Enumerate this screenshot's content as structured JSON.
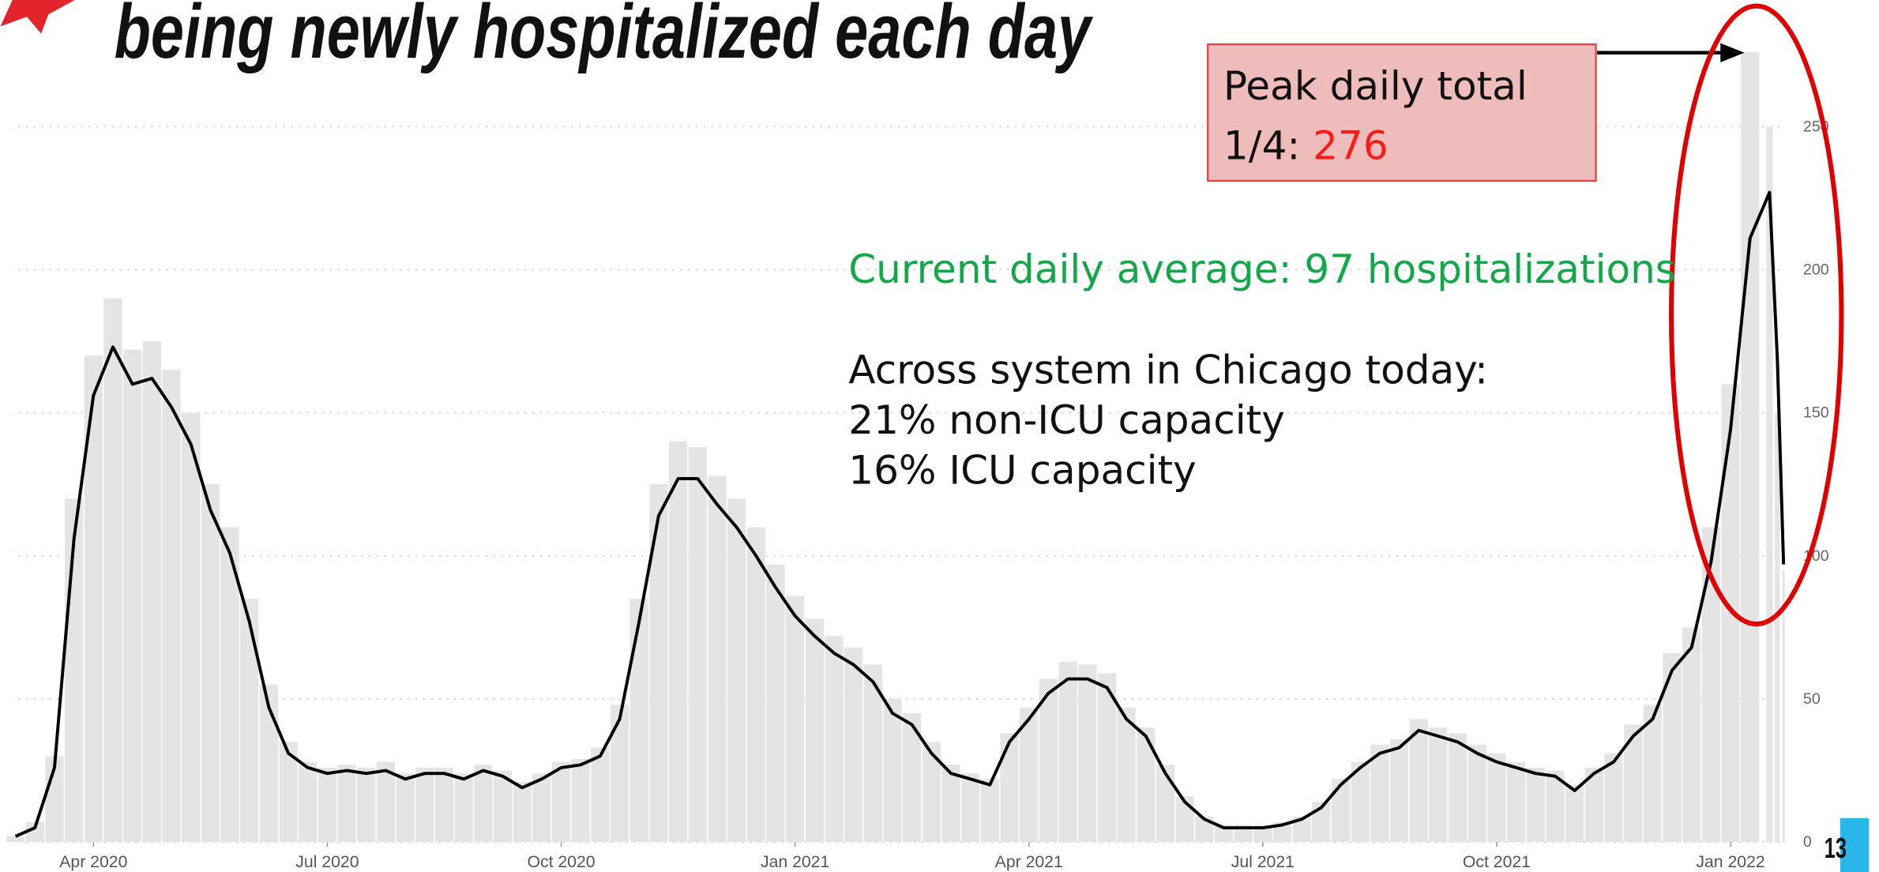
{
  "chart_data": {
    "type": "bar",
    "title": "being newly hospitalized each day",
    "x": [
      2,
      2.25,
      2.5,
      2.75,
      3,
      3.25,
      3.5,
      3.75,
      4,
      4.25,
      4.5,
      4.75,
      5,
      5.25,
      5.5,
      5.75,
      6,
      6.25,
      6.5,
      6.75,
      7,
      7.25,
      7.5,
      7.75,
      8,
      8.25,
      8.5,
      8.75,
      9,
      9.25,
      9.5,
      9.75,
      10,
      10.25,
      10.5,
      10.75,
      11,
      11.25,
      11.5,
      11.75,
      12,
      12.25,
      12.5,
      12.75,
      13,
      13.25,
      13.5,
      13.75,
      14,
      14.25,
      14.5,
      14.75,
      15,
      15.25,
      15.5,
      15.75,
      16,
      16.25,
      16.5,
      16.75,
      17,
      17.25,
      17.5,
      17.75,
      18,
      18.25,
      18.5,
      18.75,
      19,
      19.25,
      19.5,
      19.75,
      20,
      20.25,
      20.5,
      20.75,
      21,
      21.25,
      21.5,
      21.75,
      22,
      22.25,
      22.5,
      22.75,
      23,
      23.25,
      23.5,
      23.75,
      24,
      24.25,
      24.5,
      24.6,
      24.68
    ],
    "series": [
      {
        "type": "bar",
        "color": "#e4e4e4",
        "values": [
          2,
          7,
          30,
          120,
          170,
          190,
          172,
          175,
          165,
          150,
          125,
          110,
          85,
          55,
          35,
          28,
          26,
          27,
          26,
          28,
          24,
          26,
          26,
          24,
          27,
          25,
          21,
          24,
          28,
          29,
          33,
          48,
          85,
          125,
          140,
          138,
          128,
          120,
          110,
          97,
          86,
          78,
          72,
          68,
          62,
          50,
          45,
          35,
          27,
          24,
          22,
          38,
          47,
          57,
          63,
          62,
          59,
          47,
          40,
          27,
          16,
          9,
          6,
          6,
          6,
          7,
          9,
          14,
          22,
          28,
          34,
          36,
          43,
          40,
          38,
          34,
          31,
          28,
          26,
          25,
          20,
          26,
          31,
          41,
          48,
          66,
          75,
          110,
          160,
          276,
          250,
          150,
          95
        ]
      },
      {
        "type": "line",
        "color": "#000000",
        "values": [
          2,
          5,
          26,
          106,
          156,
          173,
          160,
          162,
          152,
          139,
          116,
          101,
          77,
          47,
          31,
          26,
          24,
          25,
          24,
          25,
          22,
          24,
          24,
          22,
          25,
          23,
          19,
          22,
          26,
          27,
          30,
          43,
          77,
          114,
          127,
          127,
          118,
          110,
          100,
          89,
          79,
          72,
          66,
          62,
          56,
          45,
          41,
          31,
          24,
          22,
          20,
          35,
          43,
          52,
          57,
          57,
          54,
          43,
          37,
          24,
          14,
          8,
          5,
          5,
          5,
          6,
          8,
          12,
          20,
          26,
          31,
          33,
          39,
          37,
          35,
          31,
          28,
          26,
          24,
          23,
          18,
          24,
          28,
          37,
          43,
          60,
          68,
          98,
          144,
          211,
          227,
          169,
          97
        ]
      }
    ],
    "xlim": [
      1.93,
      24.7
    ],
    "xticks": [
      {
        "value": 3,
        "label": "Apr 2020"
      },
      {
        "value": 6,
        "label": "Jul 2020"
      },
      {
        "value": 9,
        "label": "Oct 2020"
      },
      {
        "value": 12,
        "label": "Jan 2021"
      },
      {
        "value": 15,
        "label": "Apr 2021"
      },
      {
        "value": 18,
        "label": "Jul 2021"
      },
      {
        "value": 21,
        "label": "Oct 2021"
      },
      {
        "value": 24,
        "label": "Jan 2022"
      }
    ],
    "ylim": [
      0,
      280
    ],
    "yticks": [
      0,
      50,
      100,
      150,
      200,
      250
    ],
    "grid": true,
    "annotations": {
      "peak_line1": "Peak daily total",
      "peak_prefix": "1/4: ",
      "peak_value": "276",
      "current": "Current daily average: 97 hospitalizations",
      "system": "Across system in Chicago today:",
      "non_icu": "21% non-ICU capacity",
      "icu": "16% ICU capacity"
    }
  },
  "page_number": "13"
}
